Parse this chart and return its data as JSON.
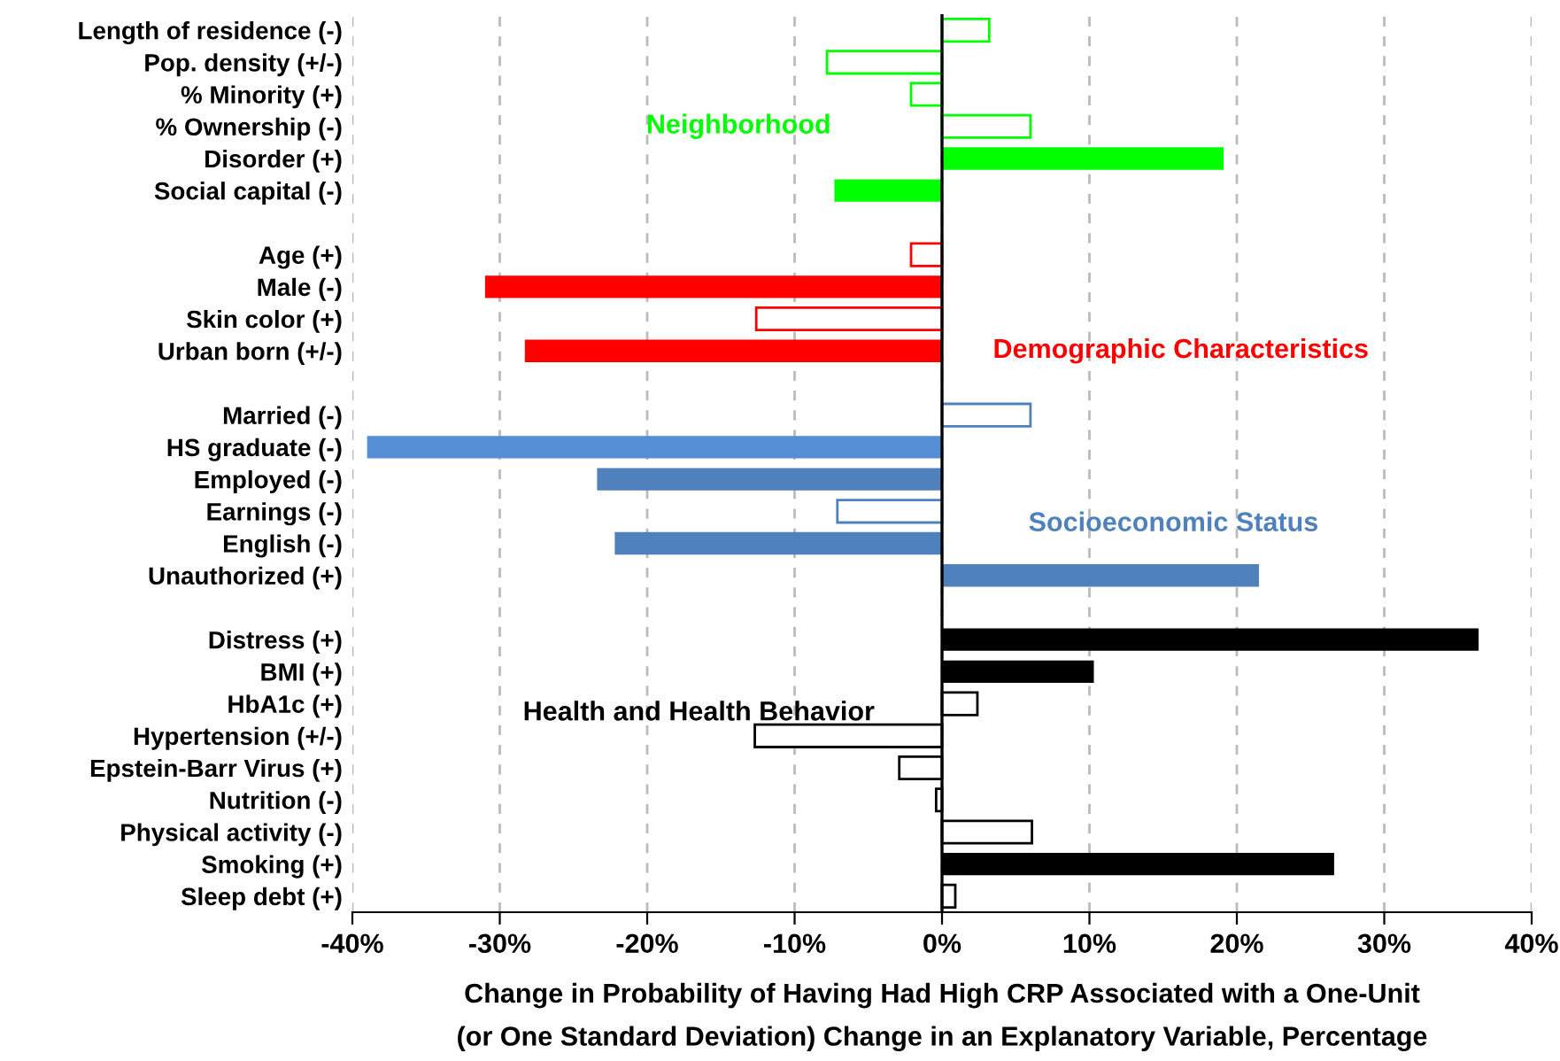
{
  "chart_data": {
    "type": "bar",
    "orientation": "horizontal",
    "categories": [
      "Length of residence (-)",
      "Pop. density (+/-)",
      "% Minority (+)",
      "% Ownership (-)",
      "Disorder (+)",
      "Social capital (-)",
      null,
      "Age (+)",
      "Male (-)",
      "Skin color (+)",
      "Urban born (+/-)",
      null,
      "Married (-)",
      "HS graduate (-)",
      "Employed (-)",
      "Earnings (-)",
      "English (-)",
      "Unauthorized (+)",
      null,
      "Distress (+)",
      "BMI (+)",
      "HbA1c (+)",
      "Hypertension (+/-)",
      "Epstein-Barr Virus (+)",
      "Nutrition (-)",
      "Physical activity (-)",
      "Smoking (+)",
      "Sleep debt (+)"
    ],
    "series": [
      {
        "values": [
          null,
          null,
          null,
          null,
          19.1,
          -7.3,
          null,
          null,
          -31.0,
          null,
          -28.3,
          null,
          null,
          -39.0,
          -23.4,
          null,
          -22.2,
          21.5,
          null,
          36.4,
          10.3,
          null,
          null,
          null,
          null,
          null,
          26.6,
          null
        ],
        "colors": [
          null,
          null,
          null,
          null,
          "#00ff00",
          "#00ff00",
          null,
          null,
          "#ff0000",
          null,
          "#ff0000",
          null,
          null,
          "#558ed5",
          "#4f81bd",
          null,
          "#4f81bd",
          "#4f81bd",
          null,
          "#000000",
          "#000000",
          null,
          null,
          null,
          null,
          null,
          "#000000",
          null
        ]
      },
      {
        "values": [
          3.2,
          -7.8,
          -2.1,
          6.0,
          null,
          null,
          null,
          -2.1,
          null,
          -12.6,
          null,
          null,
          6.0,
          null,
          null,
          -7.1,
          null,
          null,
          null,
          null,
          null,
          2.4,
          -12.7,
          -2.9,
          -0.4,
          6.1,
          null,
          0.9
        ],
        "colors": [
          "#00ff00",
          "#00ff00",
          "#00ff00",
          "#00ff00",
          null,
          null,
          null,
          "#ff0000",
          null,
          "#ff0000",
          null,
          null,
          "#4f81bd",
          null,
          null,
          "#4f81bd",
          null,
          null,
          null,
          null,
          null,
          "#000000",
          "#000000",
          "#000000",
          "#000000",
          "#000000",
          null,
          "#000000"
        ]
      }
    ],
    "xlim": [
      -40,
      40
    ],
    "xticks": [
      {
        "value": -40,
        "label": "-40%"
      },
      {
        "value": -30,
        "label": "-30%"
      },
      {
        "value": -20,
        "label": "-20%"
      },
      {
        "value": -10,
        "label": "-10%"
      },
      {
        "value": 0,
        "label": "0%"
      },
      {
        "value": 10,
        "label": "10%"
      },
      {
        "value": 20,
        "label": "20%"
      },
      {
        "value": 30,
        "label": "30%"
      },
      {
        "value": 40,
        "label": "40%"
      }
    ],
    "xlabel": "Change in Probability of Having Had High CRP Associated with a One-Unit\n(or One Standard Deviation) Change in an Explanatory Variable, Percentage",
    "annotations": [
      "Neighborhood",
      "Demographic Characteristics",
      "Socioeconomic Status",
      "Health and Health Behavior"
    ],
    "grid": "x",
    "legend": false
  }
}
